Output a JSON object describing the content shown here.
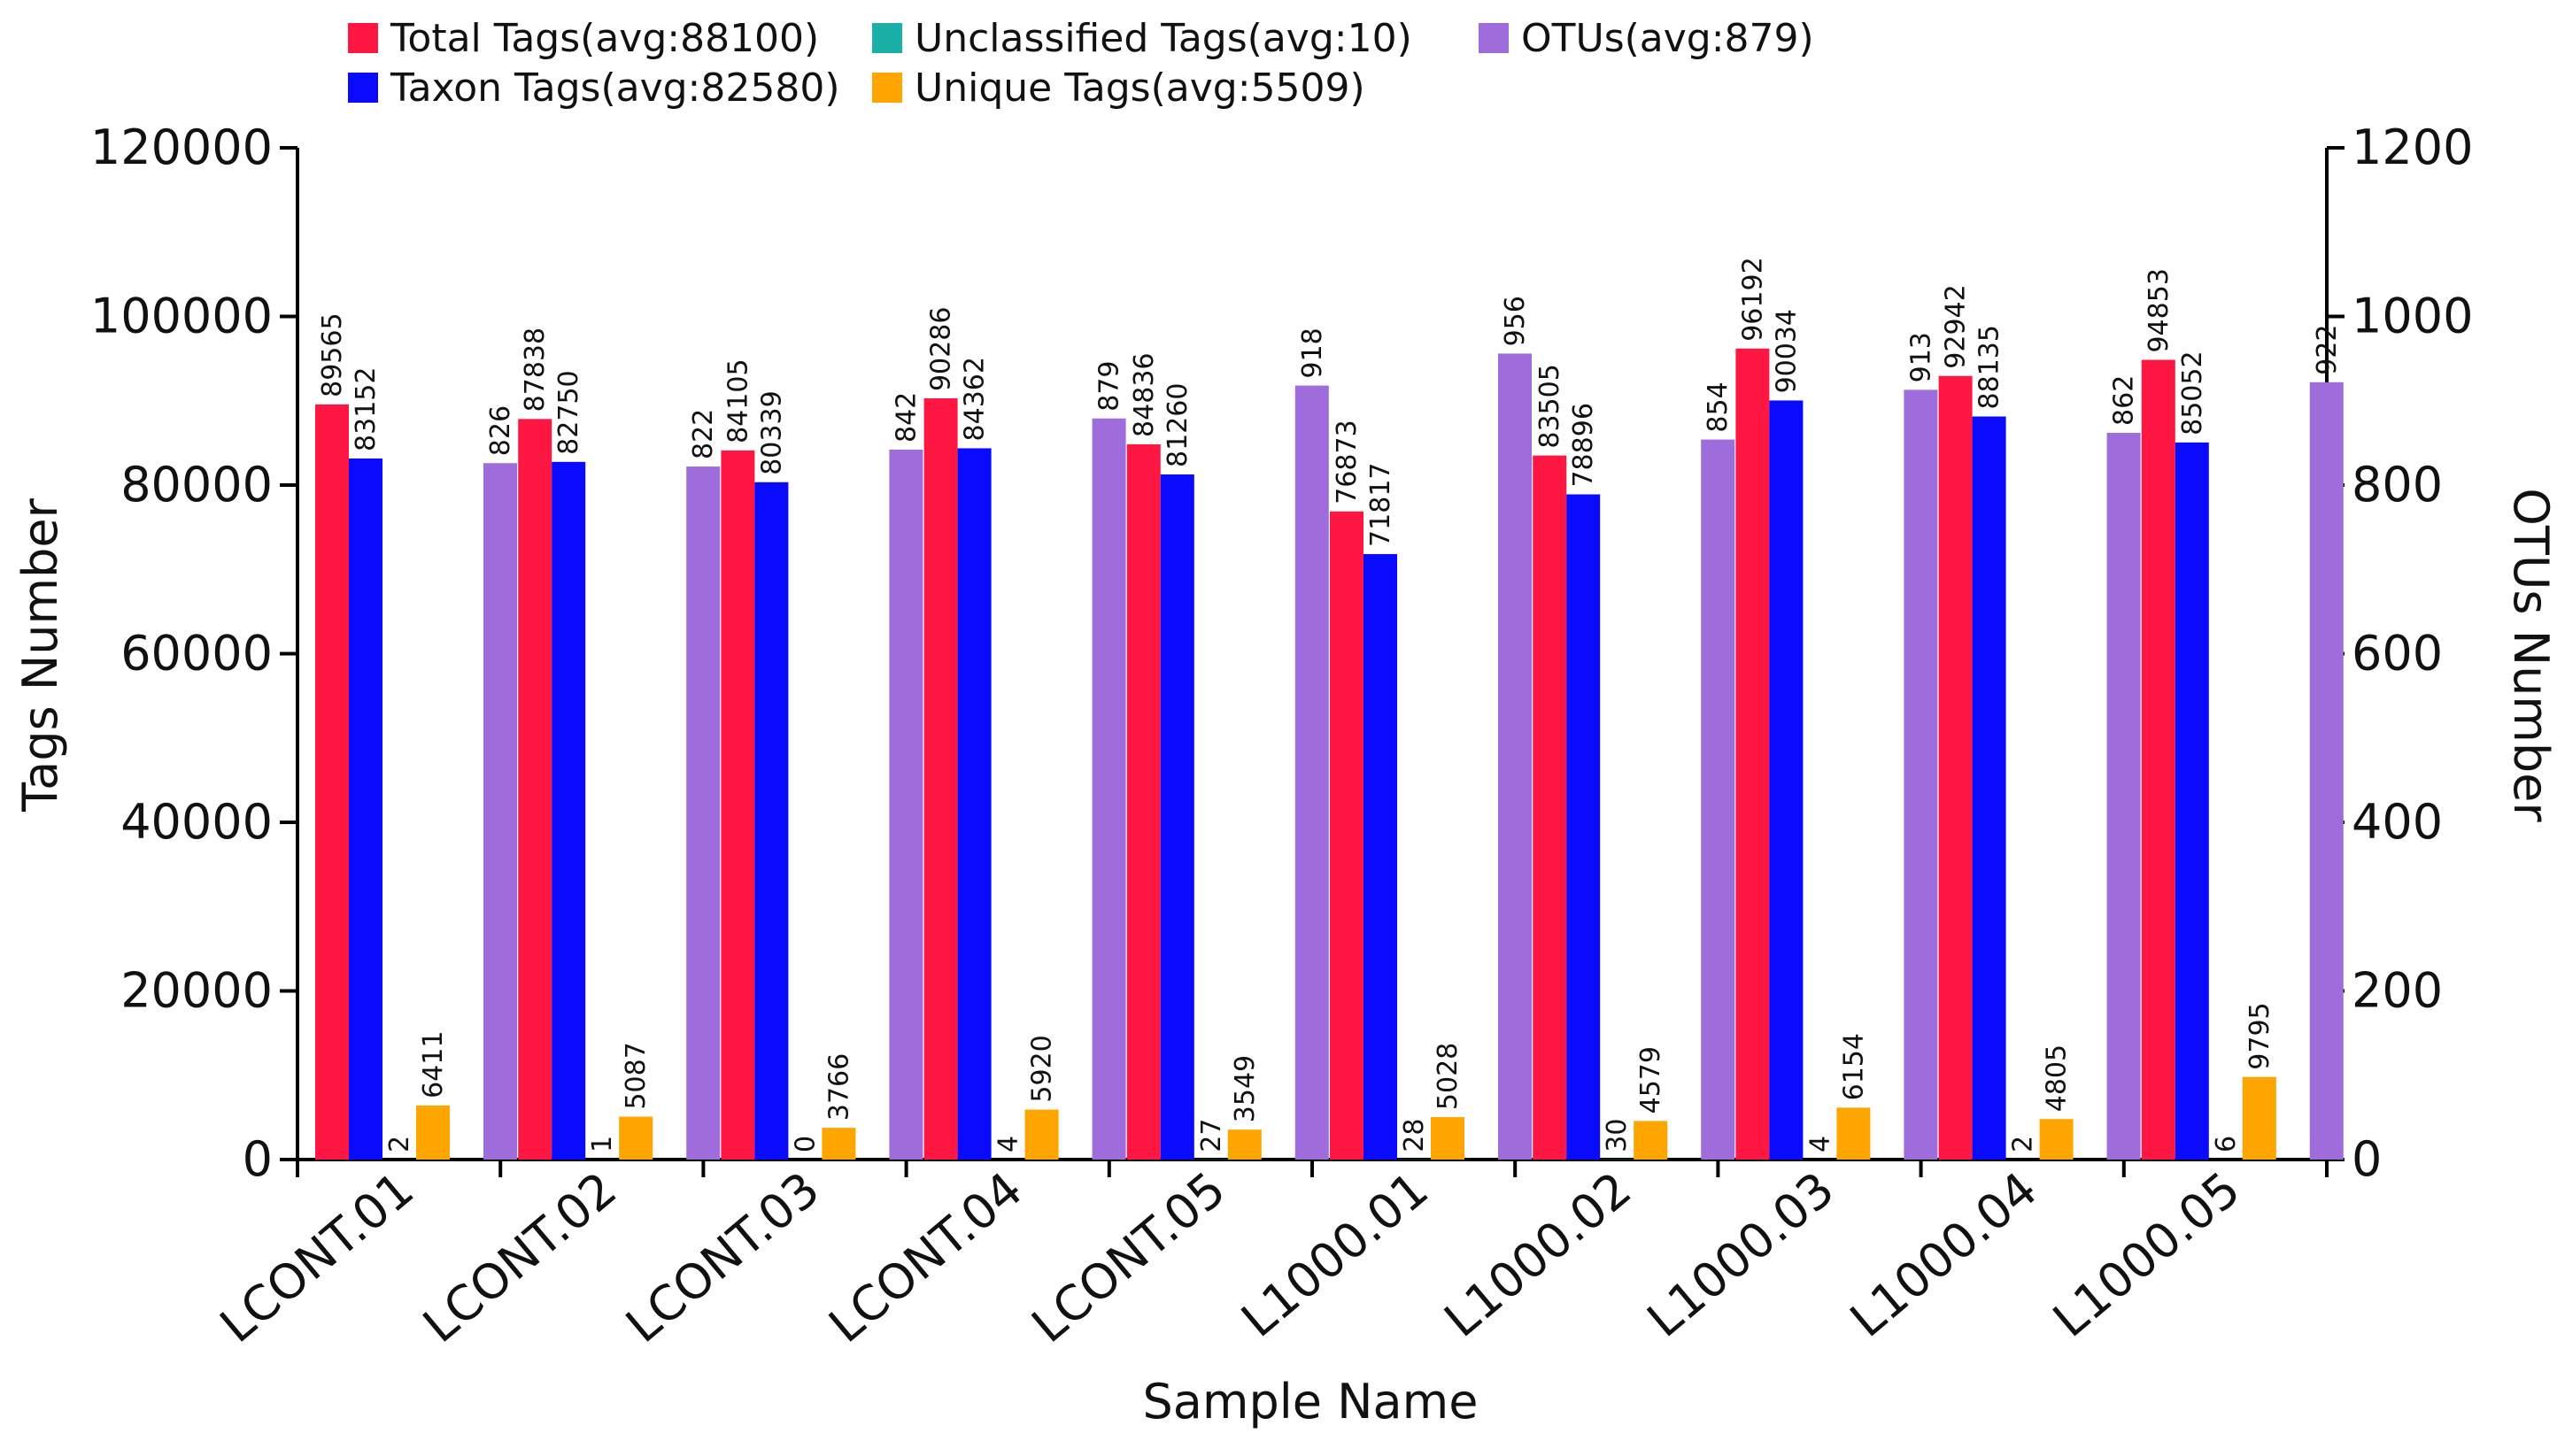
{
  "chart_data": {
    "type": "bar",
    "xlabel": "Sample Name",
    "ylabel": "Tags Number",
    "y2label": "OTUs Number",
    "ylim": [
      0,
      120000
    ],
    "y2lim": [
      0,
      1200
    ],
    "yticks": [
      "0",
      "20000",
      "40000",
      "60000",
      "80000",
      "100000",
      "120000"
    ],
    "y2ticks": [
      "0",
      "200",
      "400",
      "600",
      "800",
      "1000",
      "1200"
    ],
    "legend_position": "top-left",
    "categories": [
      "LCONT.01",
      "LCONT.02",
      "LCONT.03",
      "LCONT.04",
      "LCONT.05",
      "L1000.01",
      "L1000.02",
      "L1000.03",
      "L1000.04",
      "L1000.05"
    ],
    "series": [
      {
        "name": "Total Tags",
        "legend": "Total Tags(avg:88100)",
        "color": "#ff1744",
        "axis": "left",
        "values": [
          89565,
          87838,
          84105,
          90286,
          84836,
          76873,
          83505,
          96192,
          92942,
          94853
        ]
      },
      {
        "name": "Taxon Tags",
        "legend": "Taxon Tags(avg:82580)",
        "color": "#0a0aff",
        "axis": "left",
        "values": [
          83152,
          82750,
          80339,
          84362,
          81260,
          71817,
          78896,
          90034,
          88135,
          85052
        ]
      },
      {
        "name": "Unclassified Tags",
        "legend": "Unclassified Tags(avg:10)",
        "color": "#1ab0a8",
        "axis": "left",
        "values": [
          2,
          1,
          0,
          4,
          27,
          28,
          30,
          4,
          2,
          6
        ]
      },
      {
        "name": "Unique Tags",
        "legend": "Unique Tags(avg:5509)",
        "color": "#ffa500",
        "axis": "left",
        "values": [
          6411,
          5087,
          3766,
          5920,
          3549,
          5028,
          4579,
          6154,
          4805,
          9795
        ]
      },
      {
        "name": "OTUs",
        "legend": "OTUs(avg:879)",
        "color": "#9f6ddb",
        "axis": "right",
        "values": [
          826,
          822,
          842,
          879,
          918,
          956,
          854,
          913,
          862,
          922
        ]
      }
    ]
  }
}
